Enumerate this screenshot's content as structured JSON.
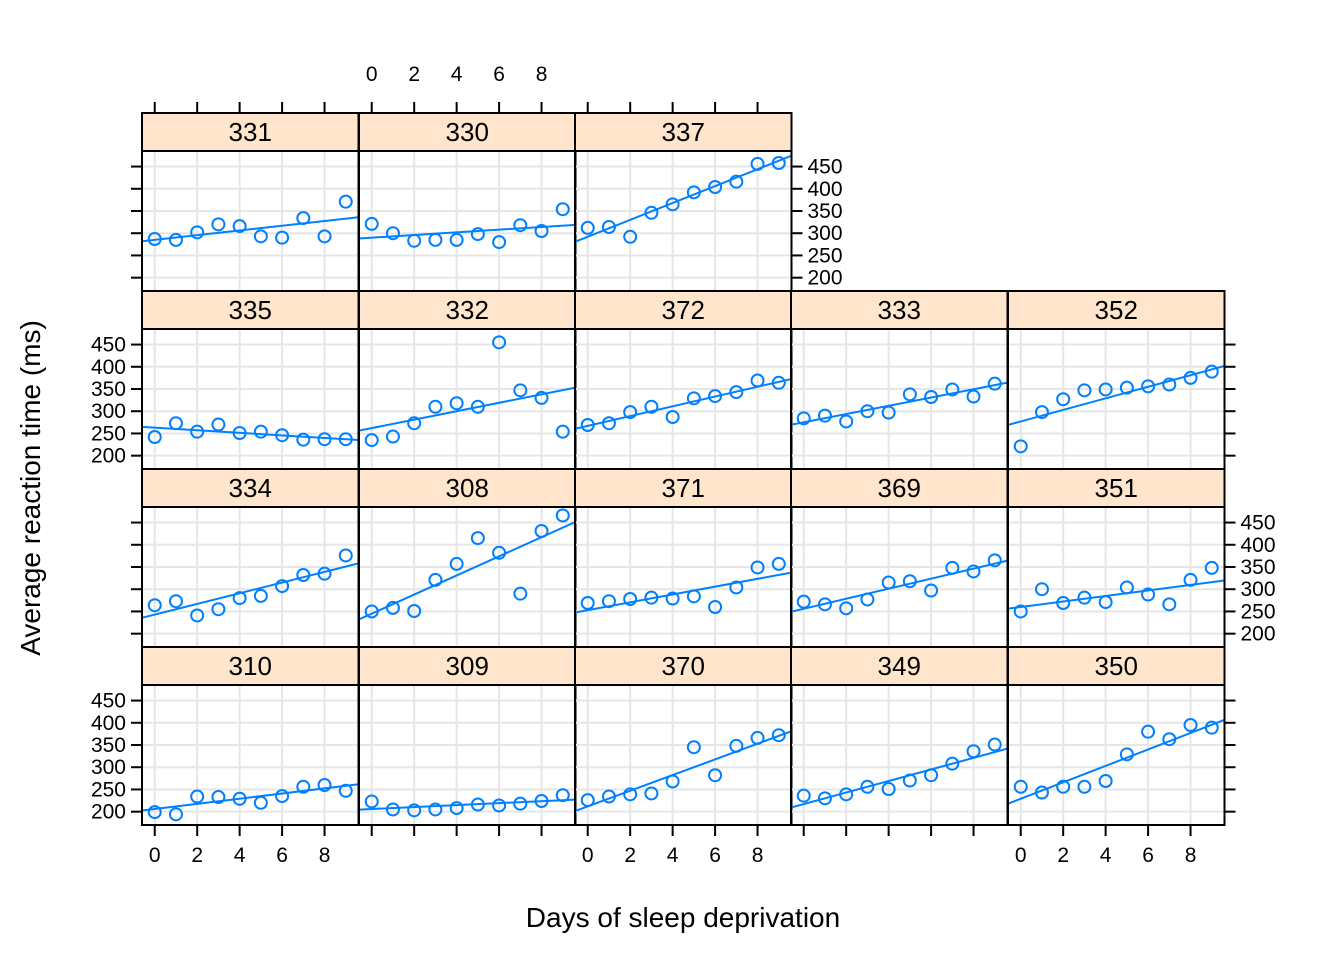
{
  "chart_data": {
    "type": "scatter",
    "layout": "trellis",
    "xlabel": "Days of sleep deprivation",
    "ylabel": "Average reaction time (ms)",
    "xlim": [
      -0.6,
      9.6
    ],
    "ylim": [
      170,
      485
    ],
    "x_ticks": [
      0,
      2,
      4,
      6,
      8
    ],
    "y_ticks": [
      200,
      250,
      300,
      350,
      400,
      450
    ],
    "grid": true,
    "colors": {
      "points": "#0080ff",
      "line": "#0080ff",
      "strip_bg": "#ffe5cc",
      "grid": "#e6e6e6",
      "frame": "#000000"
    },
    "panels": [
      {
        "subject": "331",
        "x": [
          0,
          1,
          2,
          3,
          4,
          5,
          6,
          7,
          8,
          9
        ],
        "y": [
          287,
          285,
          302,
          320,
          316,
          293,
          290,
          334,
          293,
          371
        ],
        "fit": {
          "intercept": 285,
          "slope": 5.3
        }
      },
      {
        "subject": "330",
        "x": [
          0,
          1,
          2,
          3,
          4,
          5,
          6,
          7,
          8,
          9
        ],
        "y": [
          321,
          300,
          283,
          285,
          285,
          298,
          280,
          318,
          305,
          354
        ],
        "fit": {
          "intercept": 290,
          "slope": 3.0
        }
      },
      {
        "subject": "337",
        "x": [
          0,
          1,
          2,
          3,
          4,
          5,
          6,
          7,
          8,
          9
        ],
        "y": [
          312,
          314,
          292,
          346,
          365,
          392,
          404,
          416,
          456,
          458
        ],
        "fit": {
          "intercept": 292,
          "slope": 19.0
        }
      },
      {
        "subject": "335",
        "x": [
          0,
          1,
          2,
          3,
          4,
          5,
          6,
          7,
          8,
          9
        ],
        "y": [
          242,
          273,
          254,
          270,
          251,
          254,
          246,
          236,
          237,
          237
        ],
        "fit": {
          "intercept": 263,
          "slope": -2.9
        }
      },
      {
        "subject": "332",
        "x": [
          0,
          1,
          2,
          3,
          4,
          5,
          6,
          7,
          8,
          9
        ],
        "y": [
          235,
          243,
          273,
          310,
          318,
          310,
          455,
          347,
          330,
          254
        ],
        "fit": {
          "intercept": 262,
          "slope": 9.5
        }
      },
      {
        "subject": "372",
        "x": [
          0,
          1,
          2,
          3,
          4,
          5,
          6,
          7,
          8,
          9
        ],
        "y": [
          269,
          273,
          298,
          310,
          287,
          329,
          334,
          343,
          369,
          364
        ],
        "fit": {
          "intercept": 267,
          "slope": 11.0
        }
      },
      {
        "subject": "333",
        "x": [
          0,
          1,
          2,
          3,
          4,
          5,
          6,
          7,
          8,
          9
        ],
        "y": [
          284,
          290,
          277,
          300,
          297,
          338,
          332,
          349,
          333,
          362
        ],
        "fit": {
          "intercept": 275,
          "slope": 9.3
        }
      },
      {
        "subject": "352",
        "x": [
          0,
          1,
          2,
          3,
          4,
          5,
          6,
          7,
          8,
          9
        ],
        "y": [
          221,
          298,
          327,
          347,
          349,
          353,
          356,
          360,
          375,
          389
        ],
        "fit": {
          "intercept": 277,
          "slope": 13.0
        }
      },
      {
        "subject": "334",
        "x": [
          0,
          1,
          2,
          3,
          4,
          5,
          6,
          7,
          8,
          9
        ],
        "y": [
          264,
          273,
          241,
          255,
          280,
          285,
          307,
          332,
          335,
          376
        ],
        "fit": {
          "intercept": 243,
          "slope": 12.0
        }
      },
      {
        "subject": "308",
        "x": [
          0,
          1,
          2,
          3,
          4,
          5,
          6,
          7,
          8,
          9
        ],
        "y": [
          250,
          258,
          251,
          321,
          357,
          415,
          382,
          290,
          431,
          466
        ],
        "fit": {
          "intercept": 245,
          "slope": 21.5
        }
      },
      {
        "subject": "371",
        "x": [
          0,
          1,
          2,
          3,
          4,
          5,
          6,
          7,
          8,
          9
        ],
        "y": [
          269,
          273,
          278,
          281,
          279,
          284,
          260,
          304,
          349,
          357
        ],
        "fit": {
          "intercept": 253,
          "slope": 8.8
        }
      },
      {
        "subject": "369",
        "x": [
          0,
          1,
          2,
          3,
          4,
          5,
          6,
          7,
          8,
          9
        ],
        "y": [
          272,
          266,
          257,
          277,
          315,
          318,
          297,
          348,
          340,
          365
        ],
        "fit": {
          "intercept": 256,
          "slope": 11.3
        }
      },
      {
        "subject": "351",
        "x": [
          0,
          1,
          2,
          3,
          4,
          5,
          6,
          7,
          8,
          9
        ],
        "y": [
          250,
          300,
          269,
          281,
          271,
          304,
          288,
          266,
          321,
          348
        ],
        "fit": {
          "intercept": 260,
          "slope": 6.2
        }
      },
      {
        "subject": "310",
        "x": [
          0,
          1,
          2,
          3,
          4,
          5,
          6,
          7,
          8,
          9
        ],
        "y": [
          199,
          194,
          234,
          233,
          229,
          220,
          235,
          256,
          260,
          247
        ],
        "fit": {
          "intercept": 206,
          "slope": 5.8
        }
      },
      {
        "subject": "309",
        "x": [
          0,
          1,
          2,
          3,
          4,
          5,
          6,
          7,
          8,
          9
        ],
        "y": [
          223,
          205,
          203,
          205,
          208,
          216,
          214,
          218,
          224,
          237
        ],
        "fit": {
          "intercept": 206,
          "slope": 2.2
        }
      },
      {
        "subject": "370",
        "x": [
          0,
          1,
          2,
          3,
          4,
          5,
          6,
          7,
          8,
          9
        ],
        "y": [
          226,
          234,
          239,
          241,
          268,
          345,
          282,
          348,
          366,
          372
        ],
        "fit": {
          "intercept": 212,
          "slope": 17.6
        }
      },
      {
        "subject": "349",
        "x": [
          0,
          1,
          2,
          3,
          4,
          5,
          6,
          7,
          8,
          9
        ],
        "y": [
          236,
          230,
          239,
          256,
          251,
          270,
          282,
          308,
          336,
          351
        ],
        "fit": {
          "intercept": 217,
          "slope": 13.0
        }
      },
      {
        "subject": "350",
        "x": [
          0,
          1,
          2,
          3,
          4,
          5,
          6,
          7,
          8,
          9
        ],
        "y": [
          256,
          243,
          256,
          256,
          269,
          329,
          380,
          363,
          395,
          389
        ],
        "fit": {
          "intercept": 229,
          "slope": 18.5
        }
      }
    ]
  }
}
